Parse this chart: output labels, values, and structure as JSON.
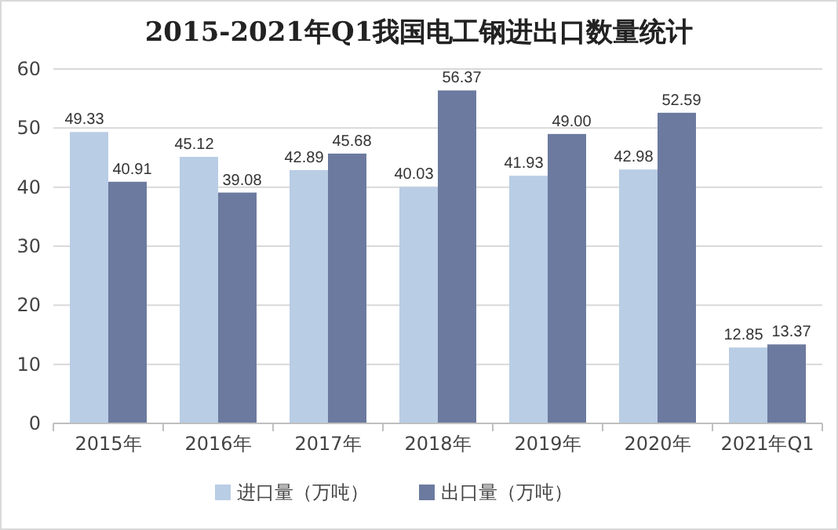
{
  "chart_data": {
    "type": "bar",
    "title": "2015-2021年Q1我国电工钢进出口数量统计",
    "categories": [
      "2015年",
      "2016年",
      "2017年",
      "2018年",
      "2019年",
      "2020年",
      "2021年Q1"
    ],
    "series": [
      {
        "name": "进口量（万吨）",
        "color": "#b9cde5",
        "values": [
          49.33,
          45.12,
          42.89,
          40.03,
          41.93,
          42.98,
          12.85
        ],
        "value_labels": [
          "49.33",
          "45.12",
          "42.89",
          "40.03",
          "41.93",
          "42.98",
          "12.85"
        ]
      },
      {
        "name": "出口量（万吨）",
        "color": "#6c7a9f",
        "values": [
          40.91,
          39.08,
          45.68,
          56.37,
          49.0,
          52.59,
          13.37
        ],
        "value_labels": [
          "40.91",
          "39.08",
          "45.68",
          "56.37",
          "49.00",
          "52.59",
          "13.37"
        ]
      }
    ],
    "ylim": [
      0,
      60
    ],
    "yticks": [
      0,
      10,
      20,
      30,
      40,
      50,
      60
    ],
    "grid": "y",
    "legend": "bottom"
  }
}
